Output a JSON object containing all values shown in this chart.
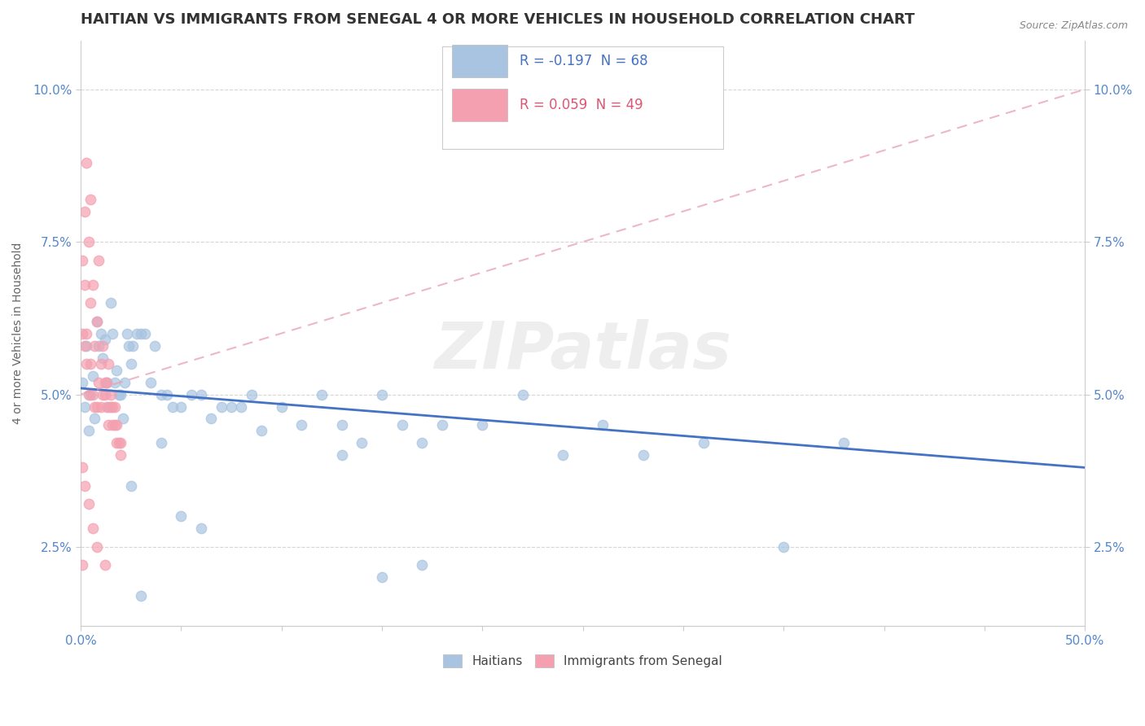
{
  "title": "HAITIAN VS IMMIGRANTS FROM SENEGAL 4 OR MORE VEHICLES IN HOUSEHOLD CORRELATION CHART",
  "source": "Source: ZipAtlas.com",
  "ylabel": "4 or more Vehicles in Household",
  "yticks": [
    "2.5%",
    "5.0%",
    "7.5%",
    "10.0%"
  ],
  "ytick_vals": [
    0.025,
    0.05,
    0.075,
    0.1
  ],
  "legend_entries": [
    {
      "r_label": "R = -0.197",
      "n_label": "N = 68",
      "color": "#a8c4e0"
    },
    {
      "r_label": "R = 0.059",
      "n_label": "N = 49",
      "color": "#f4a0b0"
    }
  ],
  "legend_bottom": [
    "Haitians",
    "Immigrants from Senegal"
  ],
  "legend_bottom_colors": [
    "#a8c4e0",
    "#f4a0b0"
  ],
  "haitian_x": [
    0.001,
    0.002,
    0.003,
    0.004,
    0.005,
    0.006,
    0.007,
    0.008,
    0.009,
    0.01,
    0.011,
    0.012,
    0.013,
    0.014,
    0.015,
    0.016,
    0.017,
    0.018,
    0.019,
    0.02,
    0.021,
    0.022,
    0.023,
    0.024,
    0.025,
    0.026,
    0.028,
    0.03,
    0.032,
    0.035,
    0.037,
    0.04,
    0.043,
    0.046,
    0.05,
    0.055,
    0.06,
    0.065,
    0.07,
    0.075,
    0.08,
    0.085,
    0.09,
    0.1,
    0.11,
    0.12,
    0.13,
    0.14,
    0.15,
    0.16,
    0.17,
    0.18,
    0.2,
    0.22,
    0.24,
    0.26,
    0.28,
    0.31,
    0.35,
    0.38,
    0.15,
    0.17,
    0.03,
    0.025,
    0.04,
    0.05,
    0.06,
    0.13
  ],
  "haitian_y": [
    0.052,
    0.048,
    0.058,
    0.044,
    0.05,
    0.053,
    0.046,
    0.062,
    0.058,
    0.06,
    0.056,
    0.059,
    0.052,
    0.048,
    0.065,
    0.06,
    0.052,
    0.054,
    0.05,
    0.05,
    0.046,
    0.052,
    0.06,
    0.058,
    0.055,
    0.058,
    0.06,
    0.06,
    0.06,
    0.052,
    0.058,
    0.05,
    0.05,
    0.048,
    0.048,
    0.05,
    0.05,
    0.046,
    0.048,
    0.048,
    0.048,
    0.05,
    0.044,
    0.048,
    0.045,
    0.05,
    0.045,
    0.042,
    0.05,
    0.045,
    0.042,
    0.045,
    0.045,
    0.05,
    0.04,
    0.045,
    0.04,
    0.042,
    0.025,
    0.042,
    0.02,
    0.022,
    0.017,
    0.035,
    0.042,
    0.03,
    0.028,
    0.04
  ],
  "senegal_x": [
    0.001,
    0.002,
    0.003,
    0.004,
    0.005,
    0.006,
    0.007,
    0.008,
    0.009,
    0.01,
    0.011,
    0.012,
    0.013,
    0.014,
    0.015,
    0.016,
    0.017,
    0.018,
    0.019,
    0.02,
    0.001,
    0.002,
    0.003,
    0.005,
    0.007,
    0.01,
    0.012,
    0.015,
    0.018,
    0.02,
    0.002,
    0.004,
    0.006,
    0.008,
    0.011,
    0.013,
    0.016,
    0.003,
    0.005,
    0.009,
    0.014,
    0.017,
    0.001,
    0.002,
    0.004,
    0.006,
    0.008,
    0.012,
    0.001
  ],
  "senegal_y": [
    0.06,
    0.058,
    0.055,
    0.05,
    0.055,
    0.05,
    0.048,
    0.048,
    0.052,
    0.048,
    0.05,
    0.05,
    0.048,
    0.045,
    0.048,
    0.045,
    0.045,
    0.042,
    0.042,
    0.04,
    0.072,
    0.068,
    0.06,
    0.065,
    0.058,
    0.055,
    0.052,
    0.05,
    0.045,
    0.042,
    0.08,
    0.075,
    0.068,
    0.062,
    0.058,
    0.052,
    0.048,
    0.088,
    0.082,
    0.072,
    0.055,
    0.048,
    0.038,
    0.035,
    0.032,
    0.028,
    0.025,
    0.022,
    0.022
  ],
  "haitian_trend": [
    0.0,
    0.5,
    0.051,
    0.038
  ],
  "senegal_trend": [
    0.0,
    0.5,
    0.05,
    0.1
  ],
  "xlim": [
    0.0,
    0.5
  ],
  "ylim": [
    0.012,
    0.108
  ],
  "haitian_dot_color": "#a8c4e0",
  "haitian_line_color": "#4472c4",
  "senegal_dot_color": "#f4a0b0",
  "senegal_line_color": "#e8a0b0",
  "watermark": "ZIPatlas",
  "background_color": "#ffffff",
  "title_fontsize": 13,
  "axis_label_fontsize": 10,
  "tick_fontsize": 11
}
